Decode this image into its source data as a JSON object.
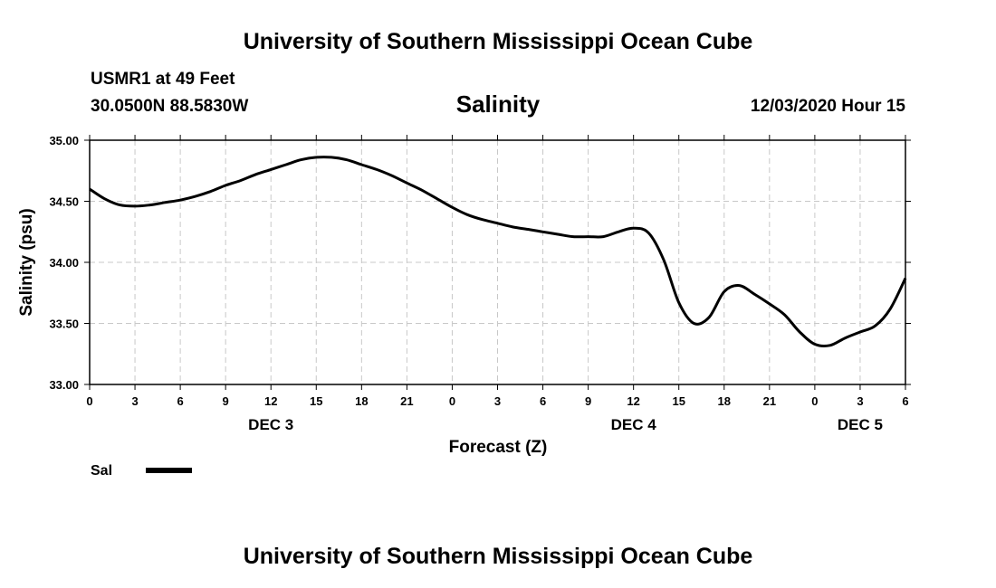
{
  "header": {
    "title": "University of Southern Mississippi Ocean Cube",
    "station": "USMR1 at 49 Feet",
    "coords": "30.0500N 88.5830W",
    "datetime": "12/03/2020 Hour 15"
  },
  "footer": {
    "title": "University of Southern Mississippi Ocean Cube"
  },
  "legend": {
    "label": "Sal"
  },
  "chart_data": {
    "type": "line",
    "title": "Salinity",
    "xlabel": "Forecast (Z)",
    "ylabel": "Salinity (psu)",
    "ylim": [
      33.0,
      35.0
    ],
    "yticks": [
      "33.00",
      "33.50",
      "34.00",
      "34.50",
      "35.00"
    ],
    "xlim": [
      0,
      54
    ],
    "xticks": [
      {
        "hours": 0,
        "label": "0"
      },
      {
        "hours": 3,
        "label": "3"
      },
      {
        "hours": 6,
        "label": "6"
      },
      {
        "hours": 9,
        "label": "9"
      },
      {
        "hours": 12,
        "label": "12"
      },
      {
        "hours": 15,
        "label": "15"
      },
      {
        "hours": 18,
        "label": "18"
      },
      {
        "hours": 21,
        "label": "21"
      },
      {
        "hours": 24,
        "label": "0"
      },
      {
        "hours": 27,
        "label": "3"
      },
      {
        "hours": 30,
        "label": "6"
      },
      {
        "hours": 33,
        "label": "9"
      },
      {
        "hours": 36,
        "label": "12"
      },
      {
        "hours": 39,
        "label": "15"
      },
      {
        "hours": 42,
        "label": "18"
      },
      {
        "hours": 45,
        "label": "21"
      },
      {
        "hours": 48,
        "label": "0"
      },
      {
        "hours": 51,
        "label": "3"
      },
      {
        "hours": 54,
        "label": "6"
      }
    ],
    "day_labels": [
      {
        "hours": 12,
        "label": "DEC 3"
      },
      {
        "hours": 36,
        "label": "DEC 4"
      },
      {
        "hours": 51,
        "label": "DEC 5"
      }
    ],
    "grid": true,
    "series": [
      {
        "name": "Sal",
        "color": "#000000",
        "x": [
          0,
          1,
          2,
          3,
          4,
          5,
          6,
          7,
          8,
          9,
          10,
          11,
          12,
          13,
          14,
          15,
          16,
          17,
          18,
          19,
          20,
          21,
          22,
          23,
          24,
          25,
          26,
          27,
          28,
          29,
          30,
          31,
          32,
          33,
          34,
          35,
          36,
          37,
          38,
          39,
          40,
          41,
          42,
          43,
          44,
          45,
          46,
          47,
          48,
          49,
          50,
          51,
          52,
          53,
          54
        ],
        "y": [
          34.6,
          34.52,
          34.47,
          34.46,
          34.47,
          34.49,
          34.51,
          34.54,
          34.58,
          34.63,
          34.67,
          34.72,
          34.76,
          34.8,
          34.84,
          34.86,
          34.86,
          34.84,
          34.8,
          34.76,
          34.71,
          34.65,
          34.59,
          34.52,
          34.45,
          34.39,
          34.35,
          34.32,
          34.29,
          34.27,
          34.25,
          34.23,
          34.21,
          34.21,
          34.21,
          34.25,
          34.28,
          34.24,
          34.02,
          33.67,
          33.5,
          33.55,
          33.76,
          33.81,
          33.74,
          33.66,
          33.57,
          33.43,
          33.33,
          33.32,
          33.38,
          33.43,
          33.48,
          33.62,
          33.87
        ]
      }
    ]
  }
}
